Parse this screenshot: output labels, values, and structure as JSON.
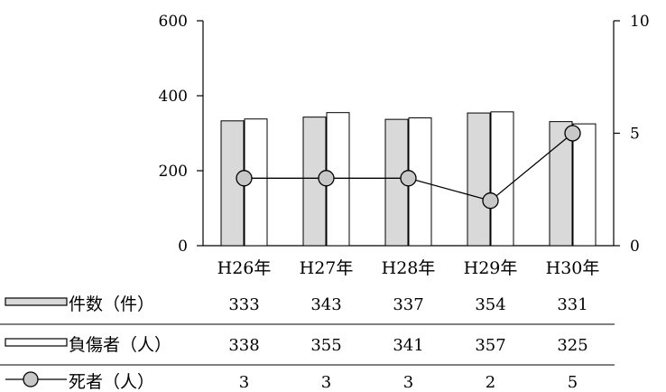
{
  "chart_data": {
    "type": "bar",
    "categories": [
      "H26年",
      "H27年",
      "H28年",
      "H29年",
      "H30年"
    ],
    "series": [
      {
        "name": "件数（件）",
        "kind": "bar",
        "axis": "left",
        "color": "#d9d9d9",
        "values": [
          333,
          343,
          337,
          354,
          331
        ]
      },
      {
        "name": "負傷者（人）",
        "kind": "bar",
        "axis": "left",
        "color": "#ffffff",
        "values": [
          338,
          355,
          341,
          357,
          325
        ]
      },
      {
        "name": "死者（人）",
        "kind": "line",
        "axis": "right",
        "color": "#c8c8c8",
        "values": [
          3,
          3,
          3,
          2,
          5
        ]
      }
    ],
    "ylim_left": [
      0,
      600
    ],
    "yticks_left": [
      0,
      200,
      400,
      600
    ],
    "ylim_right": [
      0,
      10
    ],
    "yticks_right": [
      0,
      5,
      10
    ],
    "grid": false,
    "legend": "data-table"
  }
}
